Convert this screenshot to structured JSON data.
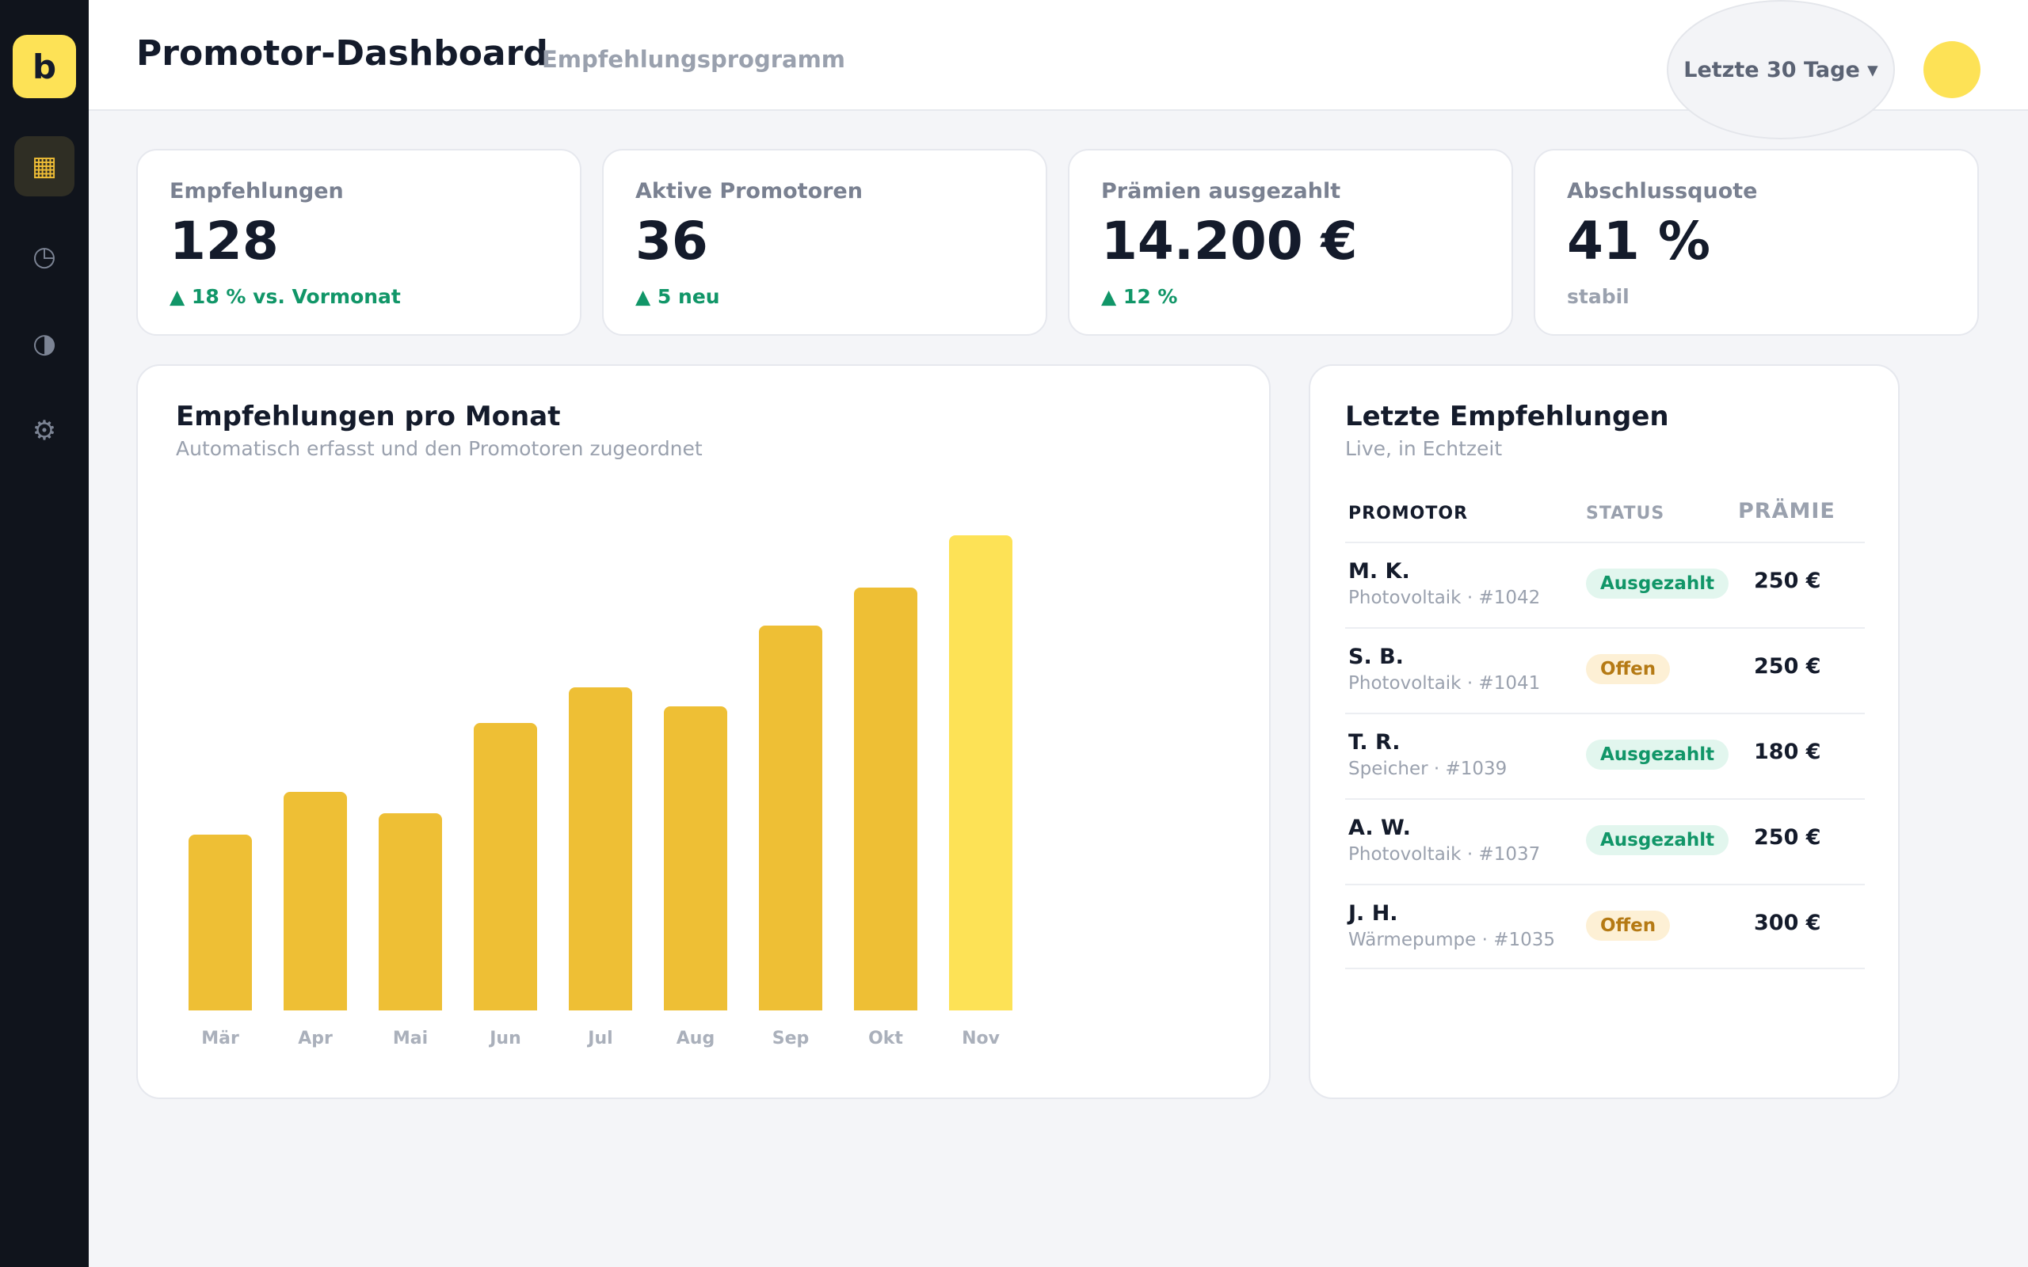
{
  "sidebar": {
    "logo": "b",
    "items": [
      {
        "icon": "grid-icon",
        "glyph": "▦",
        "active": true
      },
      {
        "icon": "clock-icon",
        "glyph": "◷",
        "active": false
      },
      {
        "icon": "contrast-icon",
        "glyph": "◑",
        "active": false
      },
      {
        "icon": "gear-icon",
        "glyph": "⚙",
        "active": false
      }
    ]
  },
  "header": {
    "title": "Promotor-Dashboard",
    "subtitle": "Empfehlungsprogramm",
    "period": "Letzte 30 Tage ▾"
  },
  "kpis": [
    {
      "label": "Empfehlungen",
      "value": "128",
      "trend": "▲ 18 % vs. Vormonat",
      "trend_type": "up"
    },
    {
      "label": "Aktive Promotoren",
      "value": "36",
      "trend": "▲ 5 neu",
      "trend_type": "up"
    },
    {
      "label": "Prämien ausgezahlt",
      "value": "14.200 €",
      "trend": "▲ 12 %",
      "trend_type": "up"
    },
    {
      "label": "Abschlussquote",
      "value": "41 %",
      "trend": "stabil",
      "trend_type": "flat"
    }
  ],
  "chart_panel": {
    "title": "Empfehlungen pro Monat",
    "subtitle": "Automatisch erfasst und den Promotoren zugeordnet"
  },
  "chart_data": {
    "type": "bar",
    "categories": [
      "Mär",
      "Apr",
      "Mai",
      "Jun",
      "Jul",
      "Aug",
      "Sep",
      "Okt",
      "Nov"
    ],
    "values": [
      37,
      46,
      41.5,
      60.5,
      68,
      64,
      81,
      89,
      100
    ],
    "ylim": [
      0,
      100
    ],
    "highlight_last": true,
    "colors": {
      "bar": "#eebf35",
      "highlight": "#fde256"
    },
    "title": "Empfehlungen pro Monat",
    "xlabel": "",
    "ylabel": "",
    "grid": false
  },
  "recent": {
    "title": "Letzte Empfehlungen",
    "subtitle": "Live, in Echtzeit",
    "columns": {
      "promotor": "PROMOTOR",
      "status": "STATUS",
      "praemie": "PRÄMIE"
    },
    "rows": [
      {
        "name": "M. K.",
        "meta": "Photovoltaik · #1042",
        "status": "Ausgezahlt",
        "status_type": "paid",
        "amount": "250 €"
      },
      {
        "name": "S. B.",
        "meta": "Photovoltaik · #1041",
        "status": "Offen",
        "status_type": "open",
        "amount": "250 €"
      },
      {
        "name": "T. R.",
        "meta": "Speicher · #1039",
        "status": "Ausgezahlt",
        "status_type": "paid",
        "amount": "180 €"
      },
      {
        "name": "A. W.",
        "meta": "Photovoltaik · #1037",
        "status": "Ausgezahlt",
        "status_type": "paid",
        "amount": "250 €"
      },
      {
        "name": "J. H.",
        "meta": "Wärmepumpe · #1035",
        "status": "Offen",
        "status_type": "open",
        "amount": "300 €"
      }
    ]
  }
}
